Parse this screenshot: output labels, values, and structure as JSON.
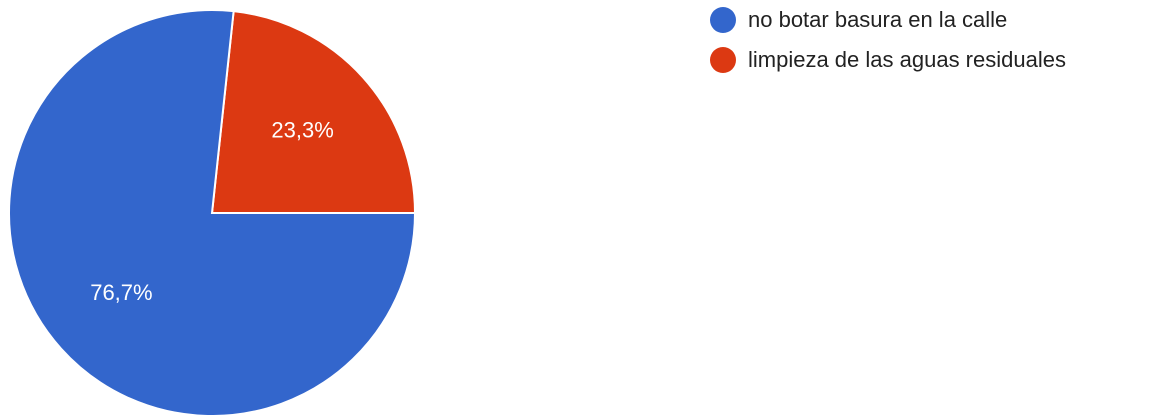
{
  "chart_data": {
    "type": "pie",
    "title": "",
    "categories": [
      "no botar basura en la calle",
      "limpieza de las aguas residuales"
    ],
    "values": [
      76.7,
      23.3
    ],
    "value_labels": [
      "76,7%",
      "23,3%"
    ],
    "colors": [
      "#3366cc",
      "#dc3912"
    ],
    "start_angle_degrees": 90,
    "legend_position": "right"
  },
  "legend": {
    "items": [
      {
        "label": "no botar basura en la calle",
        "color": "#3366cc"
      },
      {
        "label": "limpieza de las aguas residuales",
        "color": "#dc3912"
      }
    ]
  }
}
